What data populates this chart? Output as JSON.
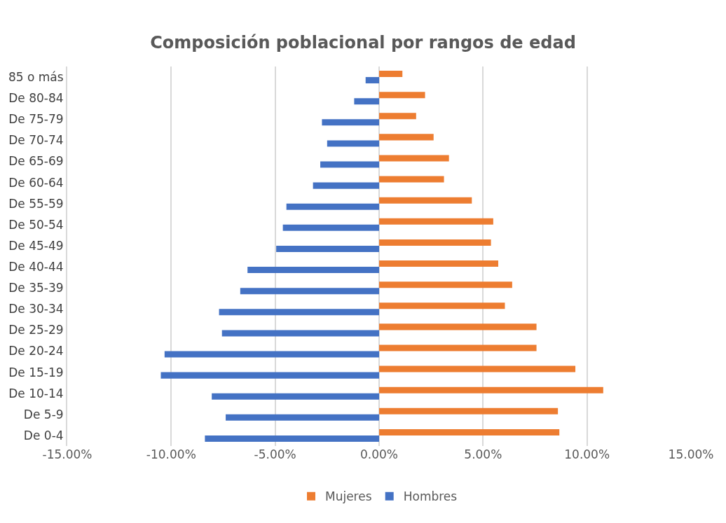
{
  "chart_data": {
    "type": "bar",
    "orientation": "horizontal",
    "title": "Composición poblacional por rangos de edad",
    "categories": [
      "85 o más",
      "De 80-84",
      "De 75-79",
      "De 70-74",
      "De 65-69",
      "De 60-64",
      "De 55-59",
      "De 50-54",
      "De 45-49",
      "De 40-44",
      "De 35-39",
      "De 30-34",
      "De 25-29",
      "De 20-24",
      "De 15-19",
      "De 10-14",
      "De 5-9",
      "De 0-4"
    ],
    "series": [
      {
        "name": "Mujeres",
        "color": "#ed7d31",
        "values": [
          1.12,
          2.21,
          1.78,
          2.62,
          3.36,
          3.12,
          4.46,
          5.49,
          5.38,
          5.73,
          6.4,
          6.05,
          7.57,
          7.57,
          9.44,
          10.78,
          8.6,
          8.67
        ]
      },
      {
        "name": "Hombres",
        "color": "#4472c4",
        "values": [
          -0.65,
          -1.2,
          -2.75,
          -2.5,
          -2.83,
          -3.18,
          -4.46,
          -4.63,
          -4.95,
          -6.33,
          -6.68,
          -7.7,
          -7.56,
          -10.32,
          -10.5,
          -8.05,
          -7.38,
          -8.38
        ]
      }
    ],
    "xlim": [
      -15,
      15
    ],
    "xticks": [
      {
        "value": -15,
        "label": "-15.00%"
      },
      {
        "value": -10,
        "label": "-10.00%"
      },
      {
        "value": -5,
        "label": "-5.00%"
      },
      {
        "value": 0,
        "label": "0.00%"
      },
      {
        "value": 5,
        "label": "5.00%"
      },
      {
        "value": 10,
        "label": "10.00%"
      },
      {
        "value": 15,
        "label": "15.00%"
      }
    ],
    "grid": "x",
    "legend": "bottom"
  }
}
